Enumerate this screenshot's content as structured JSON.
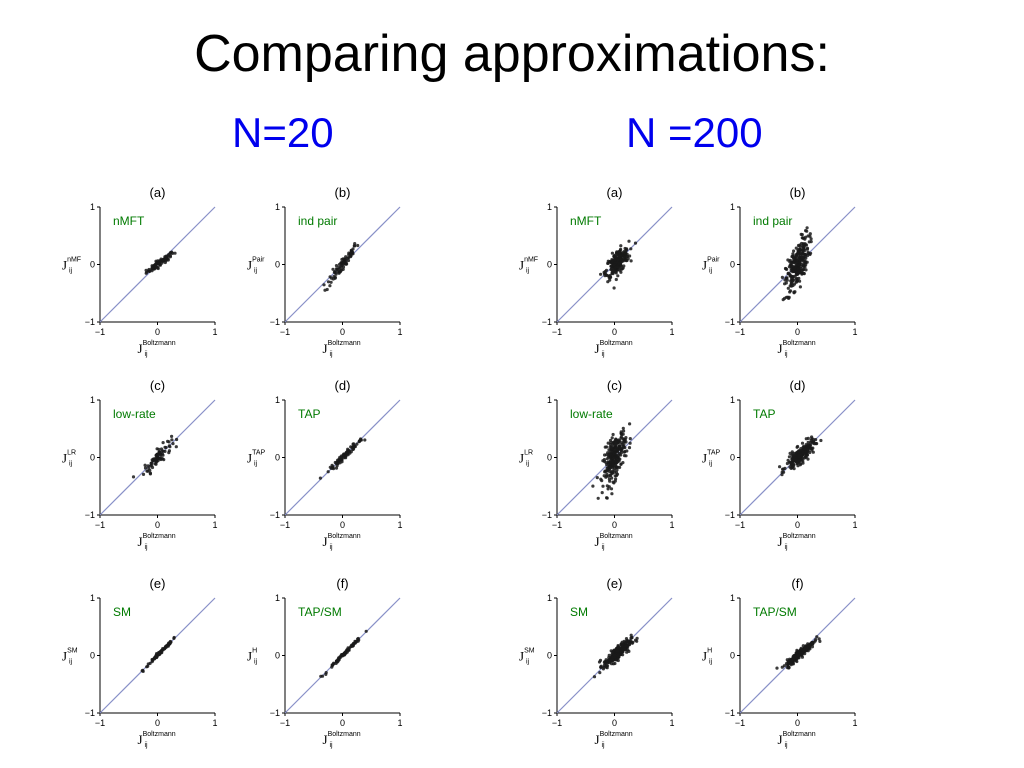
{
  "slide": {
    "title": "Comparing approximations:",
    "group_labels": [
      "N=20",
      "N =200"
    ],
    "group_color": "#0000ee"
  },
  "style": {
    "method_label_color": "#007a00",
    "diagonal_color": "#8890c8",
    "point_color": "#1a1a1a"
  },
  "chart_data": [
    {
      "type": "scatter",
      "group": "N=20",
      "panel": "(a)",
      "method": "nMFT",
      "ylabel_main": "J",
      "ylabel_sup": "nMF",
      "ylabel_sub": "ij",
      "xlabel_main": "J",
      "xlabel_sup": "Boltzmann",
      "xlabel_sub": "ij",
      "xlim": [
        -1,
        1
      ],
      "ylim": [
        -1,
        1
      ],
      "xticks": [
        "−1",
        "0",
        "1"
      ],
      "yticks": [
        "−1",
        "0",
        "1"
      ],
      "diagonal": true,
      "n_points": 80,
      "x_center": 0.05,
      "x_spread": 0.12,
      "y_slope": 0.7,
      "y_noise": 0.03
    },
    {
      "type": "scatter",
      "group": "N=20",
      "panel": "(b)",
      "method": "ind pair",
      "ylabel_main": "J",
      "ylabel_sup": "Pair",
      "ylabel_sub": "ij",
      "xlabel_main": "J",
      "xlabel_sup": "Boltzmann",
      "xlabel_sub": "ij",
      "xlim": [
        -1,
        1
      ],
      "ylim": [
        -1,
        1
      ],
      "xticks": [
        "−1",
        "0",
        "1"
      ],
      "yticks": [
        "−1",
        "0",
        "1"
      ],
      "diagonal": true,
      "n_points": 80,
      "x_center": 0.0,
      "x_spread": 0.14,
      "y_slope": 1.3,
      "y_noise": 0.06
    },
    {
      "type": "scatter",
      "group": "N=20",
      "panel": "(c)",
      "method": "low-rate",
      "ylabel_main": "J",
      "ylabel_sup": "LR",
      "ylabel_sub": "ij",
      "xlabel_main": "J",
      "xlabel_sup": "Boltzmann",
      "xlabel_sub": "ij",
      "xlim": [
        -1,
        1
      ],
      "ylim": [
        -1,
        1
      ],
      "xticks": [
        "−1",
        "0",
        "1"
      ],
      "yticks": [
        "−1",
        "0",
        "1"
      ],
      "diagonal": true,
      "n_points": 80,
      "x_center": 0.0,
      "x_spread": 0.12,
      "y_slope": 1.0,
      "y_noise": 0.07
    },
    {
      "type": "scatter",
      "group": "N=20",
      "panel": "(d)",
      "method": "TAP",
      "ylabel_main": "J",
      "ylabel_sup": "TAP",
      "ylabel_sub": "ij",
      "xlabel_main": "J",
      "xlabel_sup": "Boltzmann",
      "xlabel_sub": "ij",
      "xlim": [
        -1,
        1
      ],
      "ylim": [
        -1,
        1
      ],
      "xticks": [
        "−1",
        "0",
        "1"
      ],
      "yticks": [
        "−1",
        "0",
        "1"
      ],
      "diagonal": true,
      "n_points": 80,
      "x_center": 0.05,
      "x_spread": 0.15,
      "y_slope": 0.95,
      "y_noise": 0.025
    },
    {
      "type": "scatter",
      "group": "N=20",
      "panel": "(e)",
      "method": "SM",
      "ylabel_main": "J",
      "ylabel_sup": "SM",
      "ylabel_sub": "ij",
      "xlabel_main": "J",
      "xlabel_sup": "Boltzmann",
      "xlabel_sub": "ij",
      "xlim": [
        -1,
        1
      ],
      "ylim": [
        -1,
        1
      ],
      "xticks": [
        "−1",
        "0",
        "1"
      ],
      "yticks": [
        "−1",
        "0",
        "1"
      ],
      "diagonal": true,
      "n_points": 80,
      "x_center": 0.05,
      "x_spread": 0.15,
      "y_slope": 1.0,
      "y_noise": 0.015
    },
    {
      "type": "scatter",
      "group": "N=20",
      "panel": "(f)",
      "method": "TAP/SM",
      "ylabel_main": "J",
      "ylabel_sup": "H",
      "ylabel_sub": "ij",
      "xlabel_main": "J",
      "xlabel_sup": "Boltzmann",
      "xlabel_sub": "ij",
      "xlim": [
        -1,
        1
      ],
      "ylim": [
        -1,
        1
      ],
      "xticks": [
        "−1",
        "0",
        "1"
      ],
      "yticks": [
        "−1",
        "0",
        "1"
      ],
      "diagonal": true,
      "n_points": 80,
      "x_center": 0.05,
      "x_spread": 0.15,
      "y_slope": 1.0,
      "y_noise": 0.015
    },
    {
      "type": "scatter",
      "group": "N =200",
      "panel": "(a)",
      "method": "nMFT",
      "ylabel_main": "J",
      "ylabel_sup": "nMF",
      "ylabel_sub": "ij",
      "xlabel_main": "J",
      "xlabel_sup": "Boltzmann",
      "xlabel_sub": "ij",
      "xlim": [
        -1,
        1
      ],
      "ylim": [
        -1,
        1
      ],
      "xticks": [
        "−1",
        "0",
        "1"
      ],
      "yticks": [
        "−1",
        "0",
        "1"
      ],
      "diagonal": true,
      "n_points": 220,
      "x_center": 0.05,
      "x_spread": 0.1,
      "y_slope": 0.8,
      "y_noise": 0.1
    },
    {
      "type": "scatter",
      "group": "N =200",
      "panel": "(b)",
      "method": "ind pair",
      "ylabel_main": "J",
      "ylabel_sup": "Pair",
      "ylabel_sub": "ij",
      "xlabel_main": "J",
      "xlabel_sup": "Boltzmann",
      "xlabel_sub": "ij",
      "xlim": [
        -1,
        1
      ],
      "ylim": [
        -1,
        1
      ],
      "xticks": [
        "−1",
        "0",
        "1"
      ],
      "yticks": [
        "−1",
        "0",
        "1"
      ],
      "diagonal": true,
      "n_points": 260,
      "x_center": 0.0,
      "x_spread": 0.1,
      "y_slope": 1.6,
      "y_noise": 0.18
    },
    {
      "type": "scatter",
      "group": "N =200",
      "panel": "(c)",
      "method": "low-rate",
      "ylabel_main": "J",
      "ylabel_sup": "LR",
      "ylabel_sub": "ij",
      "xlabel_main": "J",
      "xlabel_sup": "Boltzmann",
      "xlabel_sub": "ij",
      "xlim": [
        -1,
        1
      ],
      "ylim": [
        -1,
        1
      ],
      "xticks": [
        "−1",
        "0",
        "1"
      ],
      "yticks": [
        "−1",
        "0",
        "1"
      ],
      "diagonal": true,
      "n_points": 260,
      "x_center": 0.0,
      "x_spread": 0.1,
      "y_slope": 1.4,
      "y_noise": 0.18
    },
    {
      "type": "scatter",
      "group": "N =200",
      "panel": "(d)",
      "method": "TAP",
      "ylabel_main": "J",
      "ylabel_sup": "TAP",
      "ylabel_sub": "ij",
      "xlabel_main": "J",
      "xlabel_sup": "Boltzmann",
      "xlabel_sub": "ij",
      "xlim": [
        -1,
        1
      ],
      "ylim": [
        -1,
        1
      ],
      "xticks": [
        "−1",
        "0",
        "1"
      ],
      "yticks": [
        "−1",
        "0",
        "1"
      ],
      "diagonal": true,
      "n_points": 220,
      "x_center": 0.05,
      "x_spread": 0.12,
      "y_slope": 0.8,
      "y_noise": 0.07
    },
    {
      "type": "scatter",
      "group": "N =200",
      "panel": "(e)",
      "method": "SM",
      "ylabel_main": "J",
      "ylabel_sup": "SM",
      "ylabel_sub": "ij",
      "xlabel_main": "J",
      "xlabel_sup": "Boltzmann",
      "xlabel_sub": "ij",
      "xlim": [
        -1,
        1
      ],
      "ylim": [
        -1,
        1
      ],
      "xticks": [
        "−1",
        "0",
        "1"
      ],
      "yticks": [
        "−1",
        "0",
        "1"
      ],
      "diagonal": true,
      "n_points": 220,
      "x_center": 0.05,
      "x_spread": 0.12,
      "y_slope": 0.8,
      "y_noise": 0.06
    },
    {
      "type": "scatter",
      "group": "N =200",
      "panel": "(f)",
      "method": "TAP/SM",
      "ylabel_main": "J",
      "ylabel_sup": "H",
      "ylabel_sub": "ij",
      "xlabel_main": "J",
      "xlabel_sup": "Boltzmann",
      "xlabel_sub": "ij",
      "xlim": [
        -1,
        1
      ],
      "ylim": [
        -1,
        1
      ],
      "xticks": [
        "−1",
        "0",
        "1"
      ],
      "yticks": [
        "−1",
        "0",
        "1"
      ],
      "diagonal": true,
      "n_points": 220,
      "x_center": 0.05,
      "x_spread": 0.12,
      "y_slope": 0.85,
      "y_noise": 0.04
    }
  ]
}
